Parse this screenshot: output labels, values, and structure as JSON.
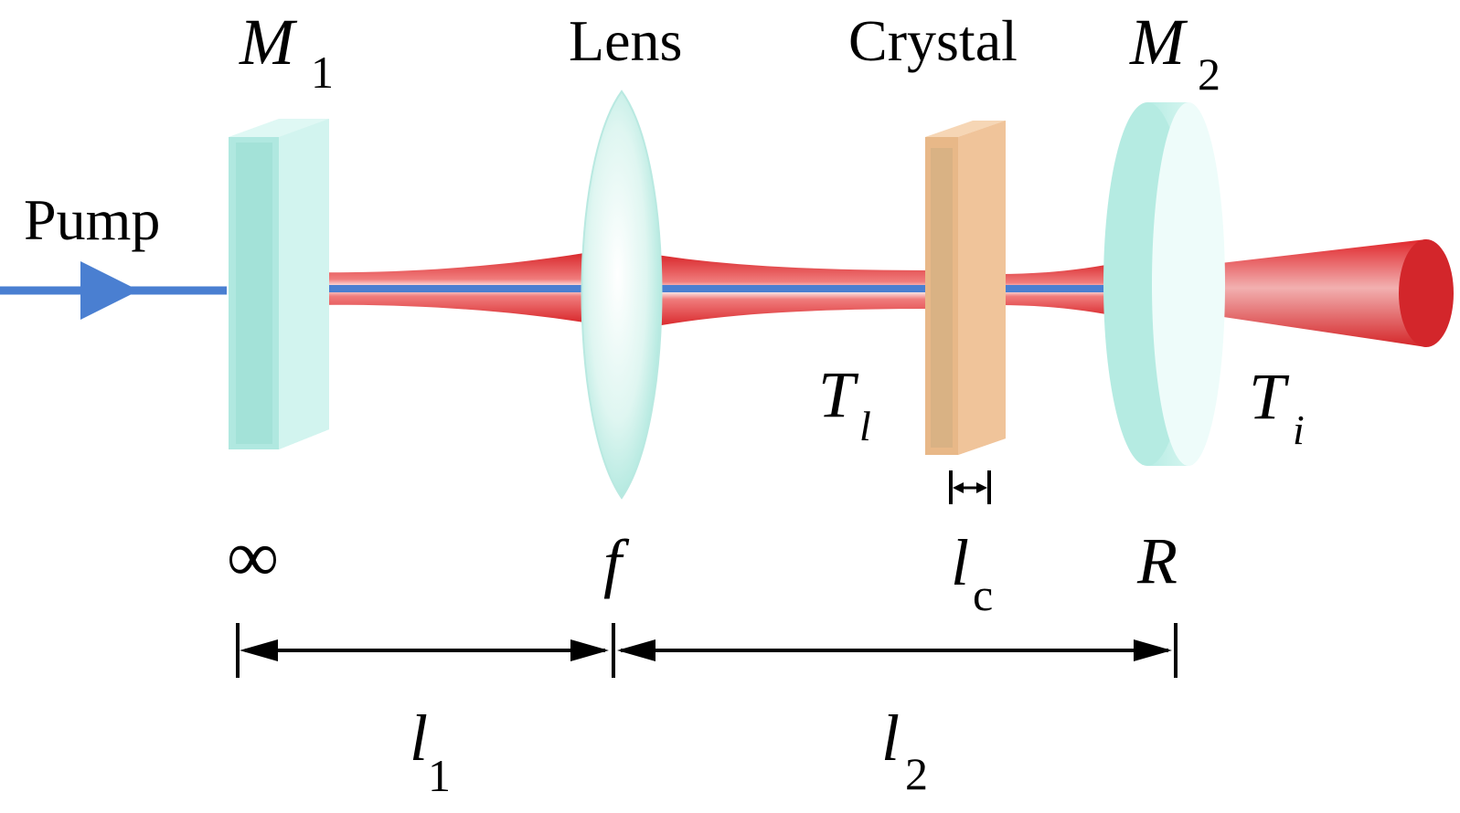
{
  "labels": {
    "pump": "Pump",
    "m1": "M",
    "m1_sub": "1",
    "lens": "Lens",
    "crystal": "Crystal",
    "m2": "M",
    "m2_sub": "2",
    "tl": "T",
    "tl_sub": "l",
    "ti": "T",
    "ti_sub": "i",
    "m1_radius": "∞",
    "focal": "f",
    "crystal_len": "l",
    "crystal_len_sub": "c",
    "m2_radius": "R",
    "l1": "l",
    "l1_sub": "1",
    "l2": "l",
    "l2_sub": "2"
  },
  "colors": {
    "pump_beam": "#4a7fd1",
    "signal_beam": "#e23a3a",
    "mirror": "#bfeee9",
    "lens": "#d4f4ee",
    "crystal": "#f0c49a"
  }
}
